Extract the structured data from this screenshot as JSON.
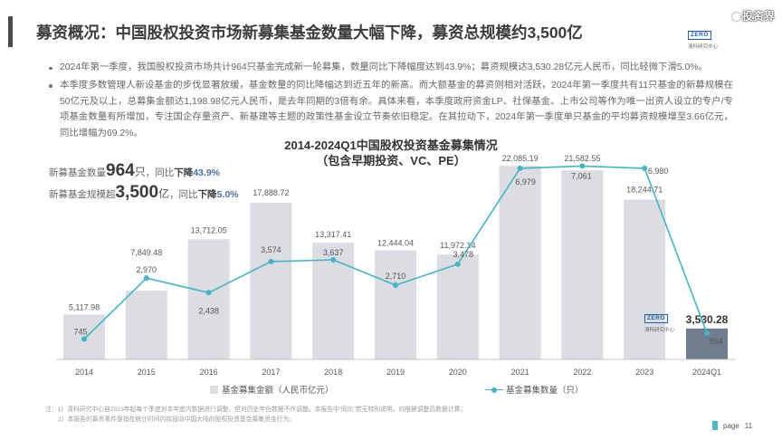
{
  "header": {
    "title": "募资概况：中国股权投资市场新募集基金数量大幅下降，募资总规模约3,500亿"
  },
  "logo": {
    "mark": "ZERO",
    "name": "清科研究中心"
  },
  "watermark": {
    "text": "投资界",
    "icon": "watermark-logo-icon"
  },
  "bullets": [
    "2024年第一季度，我国股权投资市场共计964只基金完成新一轮募集，数量同比下降幅度达到43.9%；募资规模达3,530.28亿元人民币，同比轻微下滑5.0%。",
    "本季度多数管理人新设基金的步伐显著放缓，基金数量的同比降幅达到近五年的新高。而大额基金的募资则相对活跃，2024年第一季度共有11只基金的新募规模在50亿元及以上，总募集金额达1,198.98亿元人民币，是去年同期的3倍有余。具体来看，本季度政府资金LP、社保基金、上市公司等作为唯一出资人设立的专户/专项基金数量有所增加，专注国企存量资产、新基建等主题的政策性基金设立节奏依旧稳定。在其拉动下，2024年第一季度单只基金的平均募资规模增至3.66亿元，同比增幅为69.2%。"
  ],
  "callouts": [
    {
      "prefix": "新募基金数量",
      "value": "964",
      "unit": "只",
      "middle": "，同比",
      "trend": "下降",
      "change": "43.9%"
    },
    {
      "prefix": "新募基金规模超",
      "value": "3,500",
      "unit": "亿",
      "middle": "，同比",
      "trend": "下降",
      "change": "5.0%"
    }
  ],
  "chart_data": {
    "type": "bar",
    "title": "2014-2024Q1中国股权投资基金募集情况",
    "subtitle": "（包含早期投资、VC、PE）",
    "categories": [
      "2014",
      "2015",
      "2016",
      "2017",
      "2018",
      "2019",
      "2020",
      "2021",
      "2022",
      "2023",
      "2024Q1"
    ],
    "series": [
      {
        "name": "基金募集金额（人民币亿元）",
        "type": "bar",
        "axis": "left",
        "values": [
          5117.98,
          7849.48,
          13712.05,
          17888.72,
          13317.41,
          12444.04,
          11972.14,
          22085.19,
          21582.55,
          18244.71,
          3530.28
        ],
        "color": "#dcdde2",
        "highlight": "2024Q1",
        "highlight_color": "#6f7d8e"
      },
      {
        "name": "基金募集数量（只）",
        "type": "line",
        "axis": "right",
        "values": [
          745,
          2970,
          2438,
          3574,
          3637,
          2710,
          3478,
          6979,
          7061,
          6980,
          964
        ],
        "color": "#46b4c4"
      }
    ],
    "y_range": [
      0,
      25000
    ],
    "y2_range": [
      0,
      8000
    ],
    "grid": false,
    "legend": "bottom"
  },
  "footnotes": [
    "注：1）清科研究中心自2023年起每个季度对本年度内数据进行调整，但对历史年份数据不作调整。本报告中“同比”若无特别说明，均根据调整后数据计算；",
    "2）本报告的募资事件是指在统计时间内拟投向中国大陆的股权投资基金募集资金行为。"
  ],
  "page": {
    "label": "page",
    "number": "11"
  },
  "colors": {
    "title_bar": "#4b4b4b",
    "accent": "#46b4c4",
    "change_text": "#4e6f9c"
  }
}
